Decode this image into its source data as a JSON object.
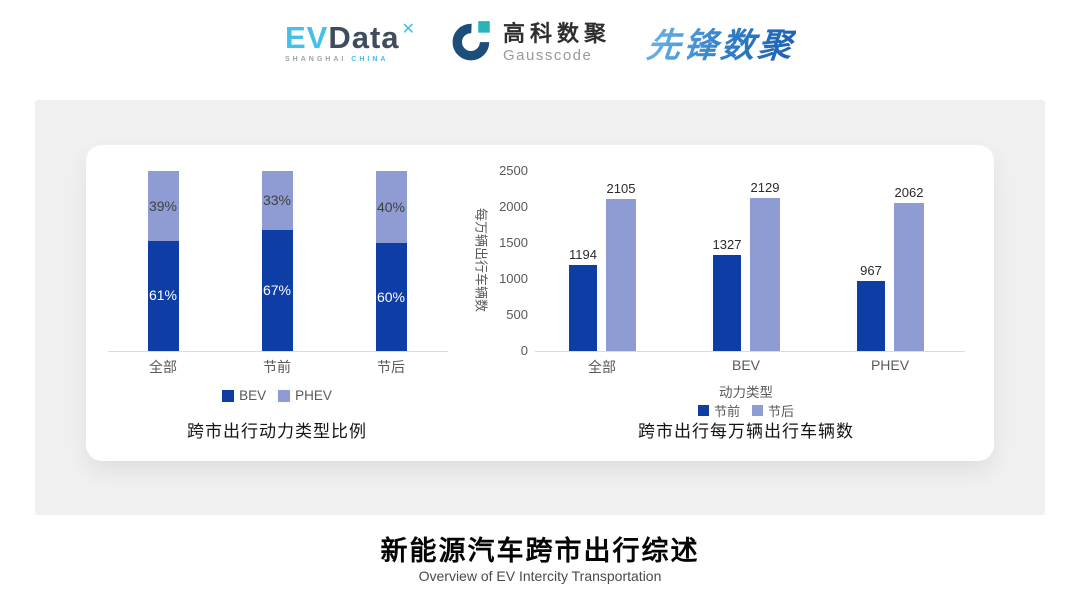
{
  "header": {
    "evdata": {
      "part1": "EV",
      "part2": "Data",
      "mark": "✕",
      "sub_left": "SHANGHAI",
      "sub_right": "CHINA"
    },
    "gausscode": {
      "name_cn": "高科数聚",
      "name_en": "Gausscode"
    },
    "pioneer": {
      "name": "先锋数聚"
    }
  },
  "colors": {
    "series_dark_blue": "#0e3da6",
    "series_light_blue": "#8e9cd3",
    "evdata_cyan": "#45c1e8",
    "evdata_slate": "#3f4c5c",
    "gauss_navy": "#1d4d7a",
    "gauss_teal": "#2ab3b8",
    "panel_gray": "#f0f0f0"
  },
  "chart_data": [
    {
      "type": "bar",
      "variant": "stacked-percent",
      "title": "跨市出行动力类型比例",
      "categories": [
        "全部",
        "节前",
        "节后"
      ],
      "series": [
        {
          "name": "BEV",
          "color": "#0e3da6",
          "label_color": "#ffffff",
          "values": [
            61,
            67,
            60
          ]
        },
        {
          "name": "PHEV",
          "color": "#8e9cd3",
          "label_color": "#404040",
          "values": [
            39,
            33,
            40
          ]
        }
      ],
      "value_suffix": "%",
      "ylim": [
        0,
        100
      ],
      "grid": false,
      "legend_position": "bottom"
    },
    {
      "type": "bar",
      "variant": "grouped",
      "title": "跨市出行每万辆出行车辆数",
      "categories": [
        "全部",
        "BEV",
        "PHEV"
      ],
      "xlabel": "动力类型",
      "ylabel": "每万辆出行车辆数",
      "series": [
        {
          "name": "节前",
          "color": "#0e3da6",
          "values": [
            1194,
            1327,
            967
          ]
        },
        {
          "name": "节后",
          "color": "#8e9cd3",
          "values": [
            2105,
            2129,
            2062
          ]
        }
      ],
      "ylim": [
        0,
        2500
      ],
      "yticks": [
        0,
        500,
        1000,
        1500,
        2000,
        2500
      ],
      "grid": false,
      "legend_position": "bottom"
    }
  ],
  "footer": {
    "title": "新能源汽车跨市出行综述",
    "subtitle": "Overview of EV Intercity Transportation"
  }
}
